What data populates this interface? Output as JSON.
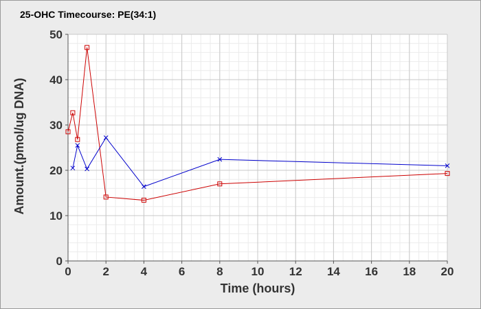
{
  "chart_data": {
    "type": "line",
    "title": "25-OHC Timecourse: PE(34:1)",
    "xlabel": "Time (hours)",
    "ylabel": "Amount.(pmol/ug DNA)",
    "xlim": [
      0,
      20
    ],
    "ylim": [
      0,
      50
    ],
    "xticks": [
      0,
      2,
      4,
      6,
      8,
      10,
      12,
      14,
      16,
      18,
      20
    ],
    "yticks": [
      0,
      10,
      20,
      30,
      40,
      50
    ],
    "grid": true,
    "legend": "none",
    "series": [
      {
        "color": "#cc0000",
        "marker": "square",
        "x": [
          0,
          0.25,
          0.5,
          1,
          2,
          4,
          8,
          20
        ],
        "y": [
          28.5,
          32.7,
          26.8,
          47.1,
          14.1,
          13.4,
          17.0,
          19.3
        ]
      },
      {
        "color": "#0000cc",
        "marker": "x",
        "x": [
          0.25,
          0.5,
          1,
          2,
          4,
          8,
          20
        ],
        "y": [
          20.5,
          25.5,
          20.3,
          27.2,
          16.4,
          22.4,
          21.0
        ]
      }
    ]
  }
}
